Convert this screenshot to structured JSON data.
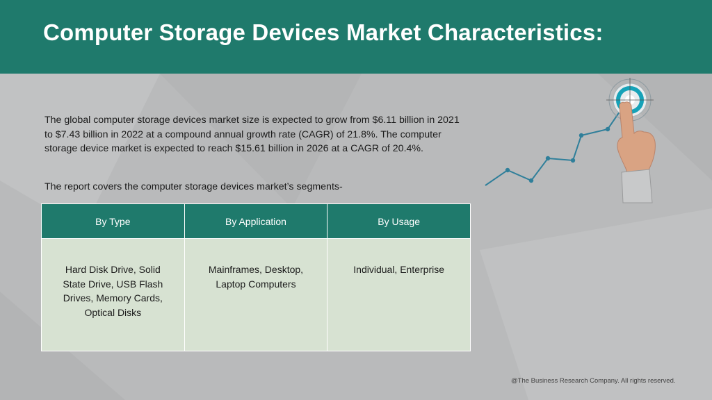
{
  "header": {
    "title": "Computer Storage Devices Market Characteristics:"
  },
  "summary": "The global computer storage devices market size is expected to grow from $6.11 billion in 2021 to $7.43 billion in 2022 at a compound annual growth rate (CAGR) of 21.8%. The computer storage device market is expected to reach $15.61 billion in 2026 at a CAGR of 20.4%.",
  "segments_intro": "The report covers the computer storage devices market’s segments-",
  "segments_table": {
    "headers": [
      "By Type",
      "By Application",
      "By Usage"
    ],
    "rows": [
      [
        "Hard Disk Drive, Solid State Drive, USB Flash Drives, Memory Cards, Optical Disks",
        "Mainframes, Desktop, Laptop Computers",
        "Individual, Enterprise"
      ]
    ]
  },
  "footer": "@The Business Research Company. All rights reserved.",
  "illustration": {
    "icon": "finger-touching-target-growth-line",
    "colors": {
      "line": "#2f7f9a",
      "target_ring": "#16a2b8",
      "header_band": "#1f7a6c"
    }
  }
}
